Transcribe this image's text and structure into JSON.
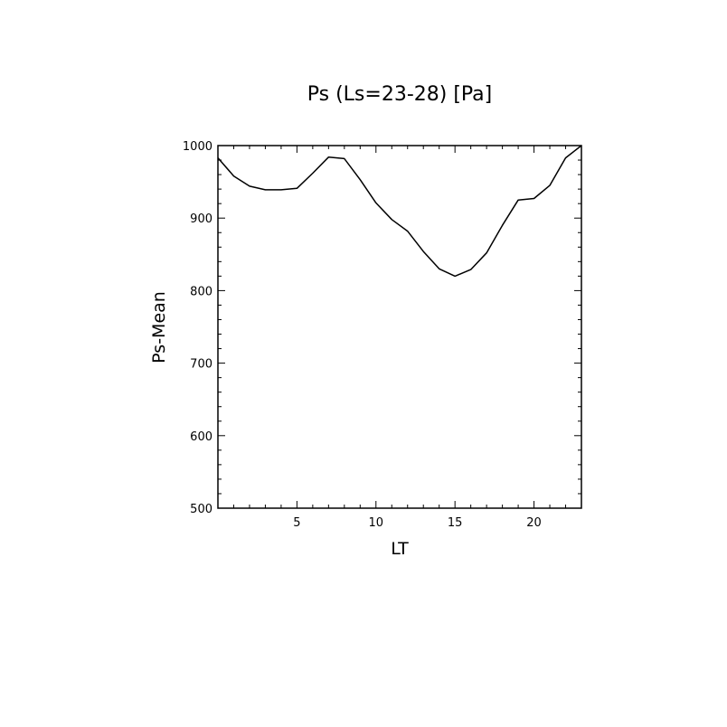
{
  "chart_data": {
    "type": "line",
    "title": "Ps (Ls=23-28) [Pa]",
    "xlabel": "LT",
    "ylabel": "Ps-Mean",
    "xlim": [
      0,
      23
    ],
    "ylim": [
      500,
      1000
    ],
    "x_ticks": [
      5,
      10,
      15,
      20
    ],
    "y_ticks": [
      500,
      600,
      700,
      800,
      900,
      1000
    ],
    "grid": false,
    "series": [
      {
        "x": [
          0,
          1,
          2,
          3,
          4,
          5,
          6,
          7,
          8,
          9,
          10,
          11,
          12,
          13,
          14,
          15,
          16,
          17,
          18,
          19,
          20,
          21,
          22,
          23
        ],
        "values": [
          983,
          958,
          944,
          939,
          939,
          941,
          962,
          984,
          982,
          953,
          921,
          898,
          882,
          854,
          830,
          820,
          829,
          852,
          890,
          925,
          927,
          945,
          983,
          1000
        ]
      }
    ],
    "colors": {
      "line": "#000000",
      "axes": "#000000",
      "background": "#ffffff"
    }
  }
}
